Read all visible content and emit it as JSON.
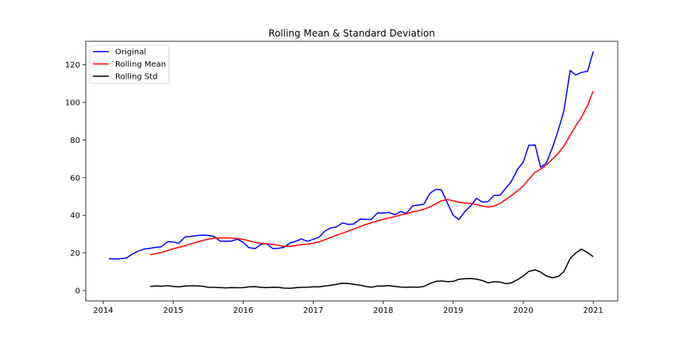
{
  "chart_data": {
    "type": "line",
    "title": "Rolling Mean & Standard Deviation",
    "xlabel": "",
    "ylabel": "",
    "xlim": [
      2013.75,
      2021.35
    ],
    "ylim": [
      -5.5,
      132.5
    ],
    "xticks": [
      2014,
      2015,
      2016,
      2017,
      2018,
      2019,
      2020,
      2021
    ],
    "yticks": [
      0,
      20,
      40,
      60,
      80,
      100,
      120
    ],
    "grid": false,
    "legend": "upper left",
    "series": [
      {
        "name": "Original",
        "color": "#0000ff",
        "x": [
          2014.08,
          2014.17,
          2014.25,
          2014.33,
          2014.42,
          2014.5,
          2014.58,
          2014.67,
          2014.75,
          2014.83,
          2014.92,
          2015.0,
          2015.08,
          2015.17,
          2015.25,
          2015.33,
          2015.42,
          2015.5,
          2015.58,
          2015.67,
          2015.75,
          2015.83,
          2015.92,
          2016.0,
          2016.08,
          2016.17,
          2016.25,
          2016.33,
          2016.42,
          2016.5,
          2016.58,
          2016.67,
          2016.75,
          2016.83,
          2016.92,
          2017.0,
          2017.08,
          2017.17,
          2017.25,
          2017.33,
          2017.42,
          2017.5,
          2017.58,
          2017.67,
          2017.75,
          2017.83,
          2017.92,
          2018.0,
          2018.08,
          2018.17,
          2018.25,
          2018.33,
          2018.42,
          2018.5,
          2018.58,
          2018.67,
          2018.75,
          2018.83,
          2018.92,
          2019.0,
          2019.08,
          2019.17,
          2019.25,
          2019.33,
          2019.42,
          2019.5,
          2019.58,
          2019.67,
          2019.75,
          2019.83,
          2019.92,
          2020.0,
          2020.08,
          2020.17,
          2020.25,
          2020.33,
          2020.42,
          2020.5,
          2020.58,
          2020.67,
          2020.75,
          2020.83,
          2020.92,
          2021.0
        ],
        "y": [
          17,
          16.8,
          17,
          17.3,
          19.5,
          21,
          22,
          22.5,
          23,
          23.3,
          26,
          25.8,
          25.2,
          28.5,
          28.8,
          29.2,
          29.5,
          29.3,
          28.8,
          26.3,
          26.2,
          26.3,
          27.3,
          25.6,
          22.8,
          22.3,
          24.5,
          25,
          22.3,
          22.5,
          23,
          25.3,
          26.2,
          27.4,
          26.2,
          27.3,
          28.3,
          31.7,
          33.3,
          33.8,
          36,
          35.2,
          35.4,
          38,
          37.8,
          37.8,
          41.3,
          41.2,
          41.5,
          40.3,
          42,
          41,
          45,
          45.5,
          45.9,
          51.8,
          53.8,
          53.6,
          46.3,
          40,
          37.8,
          42.2,
          45,
          49,
          47,
          47.3,
          50.5,
          50.7,
          54.3,
          58,
          64.5,
          68.2,
          77.2,
          77.3,
          65.5,
          67.8,
          76.2,
          85.3,
          95.2,
          117,
          114.6,
          115.9,
          116.6,
          127
        ]
      },
      {
        "name": "Rolling Mean",
        "color": "#ff0000",
        "x": [
          2014.67,
          2014.75,
          2014.83,
          2014.92,
          2015.0,
          2015.08,
          2015.17,
          2015.25,
          2015.33,
          2015.42,
          2015.5,
          2015.58,
          2015.67,
          2015.75,
          2015.83,
          2015.92,
          2016.0,
          2016.08,
          2016.17,
          2016.25,
          2016.33,
          2016.42,
          2016.5,
          2016.58,
          2016.67,
          2016.75,
          2016.83,
          2016.92,
          2017.0,
          2017.08,
          2017.17,
          2017.25,
          2017.33,
          2017.42,
          2017.5,
          2017.58,
          2017.67,
          2017.75,
          2017.83,
          2017.92,
          2018.0,
          2018.08,
          2018.17,
          2018.25,
          2018.33,
          2018.42,
          2018.5,
          2018.58,
          2018.67,
          2018.75,
          2018.83,
          2018.92,
          2019.0,
          2019.08,
          2019.17,
          2019.25,
          2019.33,
          2019.42,
          2019.5,
          2019.58,
          2019.67,
          2019.75,
          2019.83,
          2019.92,
          2020.0,
          2020.08,
          2020.17,
          2020.25,
          2020.33,
          2020.42,
          2020.5,
          2020.58,
          2020.67,
          2020.75,
          2020.83,
          2020.92,
          2021.0
        ],
        "y": [
          19,
          19.6,
          20.3,
          21.2,
          22.2,
          23,
          23.8,
          24.8,
          25.7,
          26.6,
          27.3,
          27.8,
          28,
          28,
          27.9,
          27.6,
          27.2,
          26.5,
          25.6,
          25.1,
          24.9,
          24.6,
          24.1,
          23.5,
          23.5,
          23.9,
          24.4,
          24.7,
          25.1,
          25.9,
          27.1,
          28.3,
          29.4,
          30.5,
          31.6,
          32.7,
          34,
          35.1,
          36,
          37.1,
          37.9,
          38.6,
          39.3,
          40.2,
          40.8,
          41.8,
          42.5,
          43.2,
          44.5,
          46.1,
          47.7,
          48.4,
          47.7,
          47,
          46.5,
          46.3,
          45.7,
          44.9,
          44.4,
          44.9,
          46.3,
          48.4,
          50.4,
          53,
          55.6,
          59.2,
          62.9,
          64.5,
          66.7,
          70,
          73,
          76.7,
          82.5,
          87.5,
          92,
          98.5,
          106
        ]
      },
      {
        "name": "Rolling Std",
        "color": "#000000",
        "x": [
          2014.67,
          2014.75,
          2014.83,
          2014.92,
          2015.0,
          2015.08,
          2015.17,
          2015.25,
          2015.33,
          2015.42,
          2015.5,
          2015.58,
          2015.67,
          2015.75,
          2015.83,
          2015.92,
          2016.0,
          2016.08,
          2016.17,
          2016.25,
          2016.33,
          2016.42,
          2016.5,
          2016.58,
          2016.67,
          2016.75,
          2016.83,
          2016.92,
          2017.0,
          2017.08,
          2017.17,
          2017.25,
          2017.33,
          2017.42,
          2017.5,
          2017.58,
          2017.67,
          2017.75,
          2017.83,
          2017.92,
          2018.0,
          2018.08,
          2018.17,
          2018.25,
          2018.33,
          2018.42,
          2018.5,
          2018.58,
          2018.67,
          2018.75,
          2018.83,
          2018.92,
          2019.0,
          2019.08,
          2019.17,
          2019.25,
          2019.33,
          2019.42,
          2019.5,
          2019.58,
          2019.67,
          2019.75,
          2019.83,
          2019.92,
          2020.0,
          2020.08,
          2020.17,
          2020.25,
          2020.33,
          2020.42,
          2020.5,
          2020.58,
          2020.67,
          2020.75,
          2020.83,
          2020.92,
          2021.0
        ],
        "y": [
          2.2,
          2.4,
          2.3,
          2.6,
          2.2,
          2,
          2.4,
          2.5,
          2.5,
          2.3,
          1.8,
          1.7,
          1.6,
          1.4,
          1.6,
          1.5,
          1.6,
          2,
          2.1,
          1.7,
          1.6,
          1.8,
          1.7,
          1.3,
          1.2,
          1.5,
          1.7,
          1.8,
          2,
          2,
          2.4,
          2.8,
          3.3,
          3.9,
          3.8,
          3.3,
          2.9,
          2.2,
          1.8,
          2.4,
          2.4,
          2.6,
          2.2,
          1.9,
          1.7,
          1.9,
          1.8,
          2.2,
          3.8,
          4.9,
          5.1,
          4.7,
          4.9,
          6,
          6.3,
          6.4,
          6.1,
          5.3,
          4.1,
          4.7,
          4.5,
          3.7,
          4.1,
          5.8,
          7.8,
          10.2,
          11,
          9.8,
          7.8,
          6.8,
          7.5,
          10,
          17,
          20,
          22,
          20.2,
          18
        ]
      }
    ]
  }
}
